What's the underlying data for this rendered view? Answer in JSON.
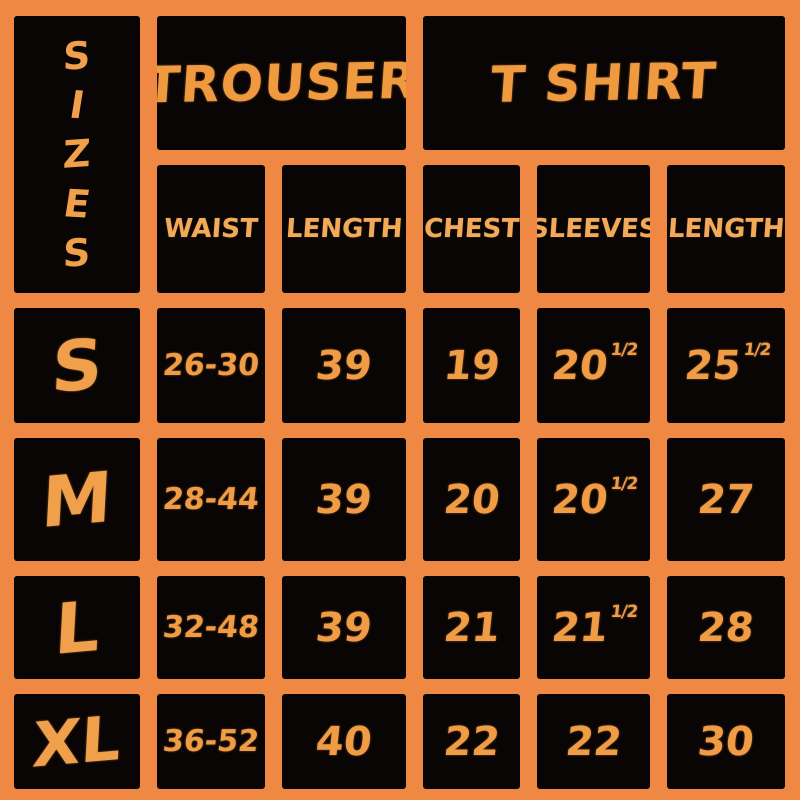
{
  "colors": {
    "background_orange": "#ef8843",
    "cell_black": "#0a0505",
    "value_text_orange": "#f09c44",
    "header_text_light_orange": "#f2aa58",
    "label_orange": "#f0a04a"
  },
  "chart_data": {
    "type": "table",
    "title": "SIZES",
    "corner_letters": [
      "S",
      "I",
      "Z",
      "E",
      "S"
    ],
    "group_headers": [
      {
        "label": "TROUSER",
        "span": 2
      },
      {
        "label": "T SHIRT",
        "span": 3
      }
    ],
    "column_headers": [
      "WAIST",
      "LENGTH",
      "CHEST",
      "SLEEVES",
      "LENGTH"
    ],
    "rows": [
      {
        "size": "S",
        "values": [
          {
            "main": "26-30"
          },
          {
            "main": "39"
          },
          {
            "main": "19"
          },
          {
            "main": "20",
            "sup": "1/2"
          },
          {
            "main": "25",
            "sup": "1/2"
          }
        ]
      },
      {
        "size": "M",
        "values": [
          {
            "main": "28-44"
          },
          {
            "main": "39"
          },
          {
            "main": "20"
          },
          {
            "main": "20",
            "sup": "1/2"
          },
          {
            "main": "27"
          }
        ]
      },
      {
        "size": "L",
        "values": [
          {
            "main": "32-48"
          },
          {
            "main": "39"
          },
          {
            "main": "21"
          },
          {
            "main": "21",
            "sup": "1/2"
          },
          {
            "main": "28"
          }
        ]
      },
      {
        "size": "XL",
        "values": [
          {
            "main": "36-52"
          },
          {
            "main": "40"
          },
          {
            "main": "22"
          },
          {
            "main": "22"
          },
          {
            "main": "30"
          }
        ]
      }
    ]
  }
}
